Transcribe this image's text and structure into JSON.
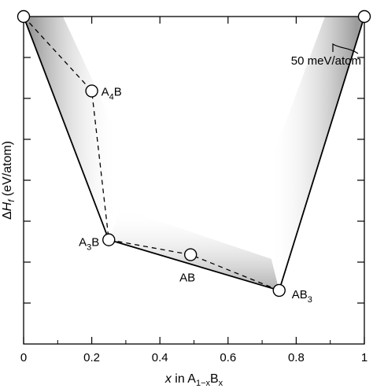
{
  "chart_data": {
    "type": "line",
    "title": "",
    "xlabel": {
      "main": "x",
      "suffix": " in A",
      "sub": "1−x",
      "mid": "B",
      "sub2": "x"
    },
    "ylabel": {
      "delta": "Δ",
      "h": "H",
      "sub": "f",
      "rest": " (eV/atom)"
    },
    "xlim": [
      0,
      1
    ],
    "x_ticks": [
      0,
      0.2,
      0.4,
      0.6,
      0.8,
      1
    ],
    "x_tick_labels": [
      "0",
      "0.2",
      "0.4",
      "0.6",
      "0.8",
      "1"
    ],
    "grid": false,
    "series": [
      {
        "style": "solid",
        "points": [
          {
            "x": 0,
            "y": 0
          },
          {
            "x": 0.25,
            "y": -0.75
          },
          {
            "x": 0.75,
            "y": -0.92
          },
          {
            "x": 1,
            "y": 0
          }
        ]
      },
      {
        "style": "dashed",
        "points": [
          {
            "x": 0,
            "y": 0
          },
          {
            "x": 0.2,
            "y": -0.25
          },
          {
            "x": 0.25,
            "y": -0.75
          },
          {
            "x": 0.49,
            "y": -0.8
          },
          {
            "x": 0.75,
            "y": -0.92
          }
        ]
      }
    ],
    "markers": [
      {
        "x": 0,
        "y": 0,
        "label": null
      },
      {
        "x": 1,
        "y": 0,
        "label": null
      },
      {
        "x": 0.2,
        "y": -0.25,
        "label": {
          "base": "A",
          "sub": "4",
          "tail": "B"
        }
      },
      {
        "x": 0.25,
        "y": -0.75,
        "label": {
          "base": "A",
          "sub": "3",
          "tail": "B"
        }
      },
      {
        "x": 0.49,
        "y": -0.8,
        "label": {
          "base": "AB",
          "sub": "",
          "tail": ""
        }
      },
      {
        "x": 0.75,
        "y": -0.92,
        "label": {
          "base": "AB",
          "sub": "3",
          "tail": ""
        }
      }
    ],
    "annotation": {
      "text": "50 meV/atom"
    }
  }
}
